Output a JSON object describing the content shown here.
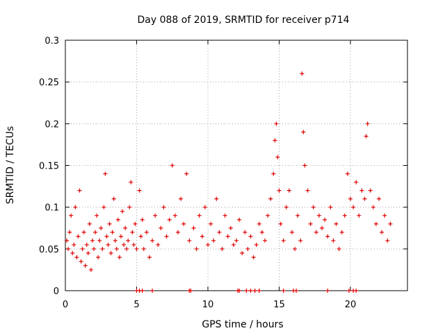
{
  "chart_data": {
    "type": "scatter",
    "title": "Day 088 of 2019, SRMTID for receiver p714",
    "xlabel": "GPS time / hours",
    "ylabel": "SRMTID / TECUs",
    "xlim": [
      0,
      24
    ],
    "ylim": [
      0,
      0.3
    ],
    "xticks": [
      0,
      5,
      10,
      15,
      20
    ],
    "xtick_labels": [
      "0",
      "5",
      "10",
      "15",
      "20"
    ],
    "yticks": [
      0,
      0.05,
      0.1,
      0.15,
      0.2,
      0.25,
      0.3
    ],
    "ytick_labels": [
      "0",
      "0.05",
      "0.1",
      "0.15",
      "0.2",
      "0.25",
      "0.3"
    ],
    "grid": true,
    "marker": "+",
    "color": "#e00000",
    "series": [
      {
        "name": "SRMTID",
        "points": [
          [
            0.1,
            0.06
          ],
          [
            0.2,
            0.05
          ],
          [
            0.3,
            0.07
          ],
          [
            0.4,
            0.09
          ],
          [
            0.5,
            0.045
          ],
          [
            0.6,
            0.055
          ],
          [
            0.7,
            0.1
          ],
          [
            0.8,
            0.04
          ],
          [
            0.9,
            0.065
          ],
          [
            1.0,
            0.12
          ],
          [
            1.1,
            0.035
          ],
          [
            1.2,
            0.05
          ],
          [
            1.3,
            0.07
          ],
          [
            1.4,
            0.03
          ],
          [
            1.5,
            0.055
          ],
          [
            1.6,
            0.045
          ],
          [
            1.7,
            0.08
          ],
          [
            1.8,
            0.025
          ],
          [
            1.9,
            0.06
          ],
          [
            2.0,
            0.05
          ],
          [
            2.1,
            0.07
          ],
          [
            2.2,
            0.09
          ],
          [
            2.3,
            0.04
          ],
          [
            2.4,
            0.06
          ],
          [
            2.5,
            0.075
          ],
          [
            2.6,
            0.05
          ],
          [
            2.7,
            0.1
          ],
          [
            2.8,
            0.14
          ],
          [
            2.9,
            0.065
          ],
          [
            3.0,
            0.055
          ],
          [
            3.1,
            0.08
          ],
          [
            3.2,
            0.045
          ],
          [
            3.3,
            0.07
          ],
          [
            3.4,
            0.11
          ],
          [
            3.5,
            0.06
          ],
          [
            3.6,
            0.05
          ],
          [
            3.7,
            0.085
          ],
          [
            3.8,
            0.04
          ],
          [
            3.9,
            0.065
          ],
          [
            4.0,
            0.095
          ],
          [
            4.1,
            0.055
          ],
          [
            4.2,
            0.075
          ],
          [
            4.3,
            0.05
          ],
          [
            4.4,
            0.06
          ],
          [
            4.5,
            0.1
          ],
          [
            4.6,
            0.13
          ],
          [
            4.7,
            0.07
          ],
          [
            4.8,
            0.055
          ],
          [
            4.9,
            0.08
          ],
          [
            5.0,
            0.05
          ],
          [
            5.2,
            0.12
          ],
          [
            5.3,
            0.065
          ],
          [
            5.4,
            0.085
          ],
          [
            5.5,
            0.05
          ],
          [
            5.7,
            0.07
          ],
          [
            5.9,
            0.04
          ],
          [
            6.1,
            0.06
          ],
          [
            6.3,
            0.09
          ],
          [
            6.5,
            0.055
          ],
          [
            6.7,
            0.075
          ],
          [
            6.9,
            0.1
          ],
          [
            7.1,
            0.065
          ],
          [
            7.3,
            0.085
          ],
          [
            7.5,
            0.15
          ],
          [
            7.7,
            0.09
          ],
          [
            7.9,
            0.07
          ],
          [
            8.1,
            0.11
          ],
          [
            8.3,
            0.08
          ],
          [
            8.5,
            0.14
          ],
          [
            8.7,
            0.06
          ],
          [
            9.0,
            0.075
          ],
          [
            9.2,
            0.05
          ],
          [
            9.4,
            0.09
          ],
          [
            9.6,
            0.065
          ],
          [
            9.8,
            0.1
          ],
          [
            10.0,
            0.055
          ],
          [
            10.2,
            0.08
          ],
          [
            10.4,
            0.06
          ],
          [
            10.6,
            0.11
          ],
          [
            10.8,
            0.07
          ],
          [
            11.0,
            0.05
          ],
          [
            11.2,
            0.09
          ],
          [
            11.4,
            0.065
          ],
          [
            11.6,
            0.075
          ],
          [
            11.8,
            0.055
          ],
          [
            12.0,
            0.06
          ],
          [
            12.2,
            0.085
          ],
          [
            12.4,
            0.045
          ],
          [
            12.6,
            0.07
          ],
          [
            12.8,
            0.05
          ],
          [
            13.0,
            0.065
          ],
          [
            13.2,
            0.04
          ],
          [
            13.4,
            0.055
          ],
          [
            13.6,
            0.08
          ],
          [
            13.8,
            0.07
          ],
          [
            14.0,
            0.06
          ],
          [
            14.2,
            0.09
          ],
          [
            14.4,
            0.11
          ],
          [
            14.6,
            0.14
          ],
          [
            14.7,
            0.18
          ],
          [
            14.8,
            0.2
          ],
          [
            14.9,
            0.16
          ],
          [
            15.0,
            0.12
          ],
          [
            15.1,
            0.08
          ],
          [
            15.3,
            0.06
          ],
          [
            15.5,
            0.1
          ],
          [
            15.7,
            0.12
          ],
          [
            15.9,
            0.07
          ],
          [
            16.1,
            0.05
          ],
          [
            16.3,
            0.09
          ],
          [
            16.5,
            0.06
          ],
          [
            16.6,
            0.26
          ],
          [
            16.7,
            0.19
          ],
          [
            16.8,
            0.15
          ],
          [
            17.0,
            0.12
          ],
          [
            17.2,
            0.08
          ],
          [
            17.4,
            0.1
          ],
          [
            17.6,
            0.07
          ],
          [
            17.8,
            0.09
          ],
          [
            18.0,
            0.075
          ],
          [
            18.2,
            0.085
          ],
          [
            18.4,
            0.065
          ],
          [
            18.6,
            0.1
          ],
          [
            18.8,
            0.06
          ],
          [
            19.0,
            0.08
          ],
          [
            19.2,
            0.05
          ],
          [
            19.4,
            0.07
          ],
          [
            19.6,
            0.09
          ],
          [
            19.8,
            0.14
          ],
          [
            20.0,
            0.11
          ],
          [
            20.2,
            0.1
          ],
          [
            20.4,
            0.13
          ],
          [
            20.6,
            0.09
          ],
          [
            20.8,
            0.12
          ],
          [
            21.0,
            0.11
          ],
          [
            21.1,
            0.185
          ],
          [
            21.2,
            0.2
          ],
          [
            21.4,
            0.12
          ],
          [
            21.6,
            0.1
          ],
          [
            21.8,
            0.08
          ],
          [
            22.0,
            0.11
          ],
          [
            22.2,
            0.07
          ],
          [
            22.4,
            0.09
          ],
          [
            22.6,
            0.06
          ],
          [
            22.8,
            0.08
          ]
        ]
      }
    ],
    "baseline_markers_x": [
      5.0,
      5.2,
      5.4,
      6.1,
      8.7,
      8.8,
      12.1,
      12.2,
      12.7,
      13.0,
      13.3,
      13.6,
      15.3,
      16.0,
      16.2,
      18.4,
      19.9,
      20.2,
      20.4
    ]
  }
}
